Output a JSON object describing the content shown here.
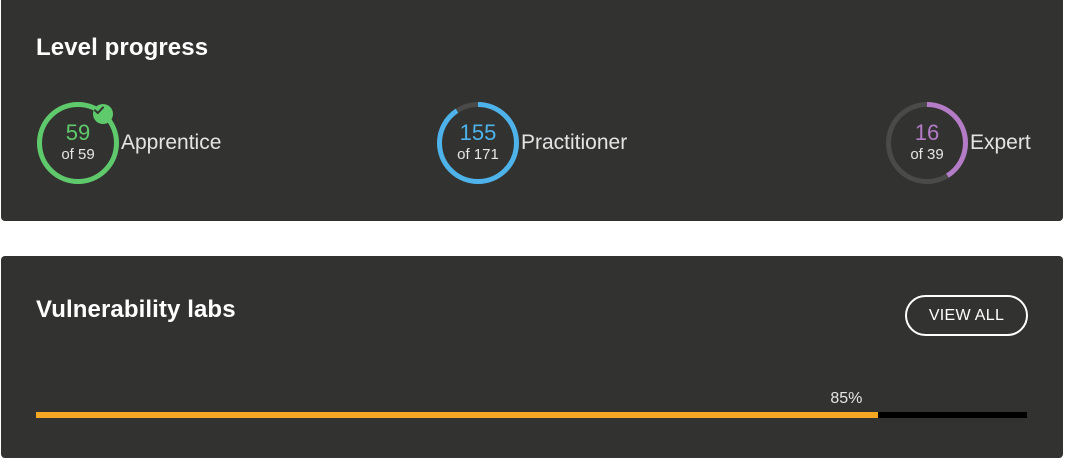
{
  "level_progress": {
    "title": "Level progress",
    "levels": [
      {
        "name": "Apprentice",
        "count": "59",
        "total_label": "of 59",
        "done": 59,
        "total": 59,
        "color": "#5fca6b",
        "completed": true,
        "icon": "check-circle-icon"
      },
      {
        "name": "Practitioner",
        "count": "155",
        "total_label": "of 171",
        "done": 155,
        "total": 171,
        "color": "#4db3ea",
        "completed": false
      },
      {
        "name": "Expert",
        "count": "16",
        "total_label": "of 39",
        "done": 16,
        "total": 39,
        "color": "#b47cc7",
        "completed": false
      }
    ],
    "track_color": "#4a4a48"
  },
  "vulnerability_labs": {
    "title": "Vulnerability labs",
    "view_all_label": "VIEW ALL",
    "progress_percent": 85,
    "progress_label": "85%",
    "progress_color": "#f5a623",
    "track_color": "#000000"
  }
}
